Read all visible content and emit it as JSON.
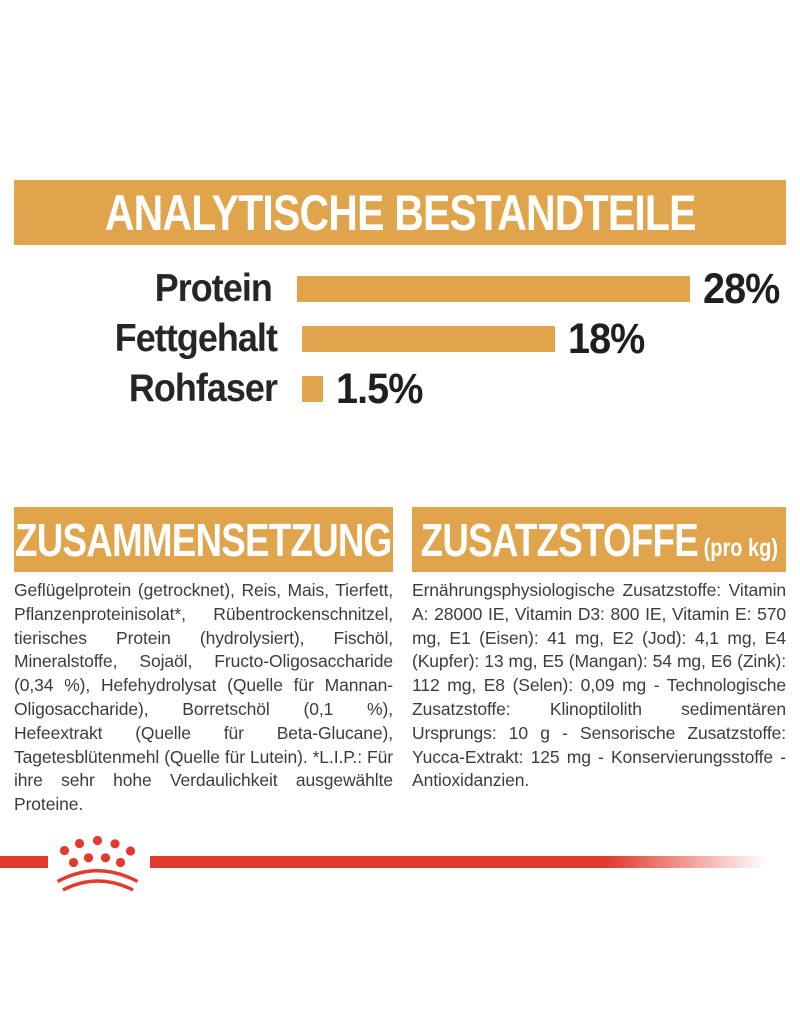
{
  "page": {
    "background": "#ffffff",
    "accent_gold": "#DFA44C",
    "brand_red": "#E23B2E",
    "label_text_color": "#262626",
    "body_text_color": "#3c3c3c"
  },
  "analytical": {
    "title": "ANALYTISCHE BESTANDTEILE"
  },
  "chart_data": {
    "type": "bar",
    "orientation": "horizontal",
    "title": "ANALYTISCHE BESTANDTEILE",
    "categories": [
      "Protein",
      "Fettgehalt",
      "Rohfaser"
    ],
    "values": [
      28,
      18,
      1.5
    ],
    "value_labels": [
      "28%",
      "18%",
      "1.5%"
    ],
    "unit": "%",
    "xlim": [
      0,
      28
    ],
    "bar_color": "#DFA44C",
    "grid": false,
    "legend": false
  },
  "composition": {
    "title": "ZUSAMMENSETZUNG",
    "body": "Geflügelprotein (getrocknet), Reis, Mais, Tierfett, Pflanzenproteinisolat*, Rübentrockenschnitzel, tierisches Protein (hydrolysiert), Fischöl, Mineralstoffe, Sojaöl, Fructo-Oligosaccharide (0,34 %), Hefehydrolysat (Quelle für Mannan-Oligosaccharide), Borretschöl (0,1 %), Hefeextrakt (Quelle für Beta-Glucane), Tagetesblütenmehl (Quelle für Lutein). *L.I.P.: Für ihre sehr hohe Verdaulichkeit ausgewählte Proteine."
  },
  "additives": {
    "title": "ZUSATZSTOFFE",
    "title_suffix": "(pro kg)",
    "body": "Ernährungsphysiologische Zusatzstoffe: Vitamin A: 28000 IE, Vitamin D3: 800 IE, Vitamin E: 570 mg, E1 (Eisen): 41 mg, E2 (Jod): 4,1 mg, E4 (Kupfer): 13 mg, E5 (Mangan): 54 mg, E6 (Zink): 112 mg, E8 (Selen): 0,09 mg - Technologische Zusatzstoffe: Klinoptilolith sedimentären Ursprungs: 10 g - Sensorische Zusatzstoffe: Yucca-Extrakt: 125 mg - Konservierungsstoffe - Antioxidanzien."
  },
  "footer": {
    "logo": "royal-canin-crown"
  }
}
